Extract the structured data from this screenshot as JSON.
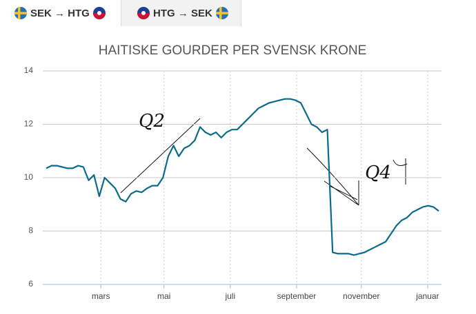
{
  "tabs": [
    "SEK → HTG",
    "HTG → SEK"
  ],
  "chart_data": {
    "type": "line",
    "title": "HAITISKE GOURDER PER SVENSK KRONE",
    "color": "#0b6a8c",
    "values": [
      10.35,
      10.45,
      10.45,
      10.4,
      10.35,
      10.35,
      10.45,
      10.4,
      9.9,
      10.1,
      9.3,
      10.0,
      9.8,
      9.6,
      9.2,
      9.1,
      9.4,
      9.5,
      9.45,
      9.6,
      9.7,
      9.7,
      10.0,
      10.8,
      11.2,
      10.8,
      11.1,
      11.2,
      11.4,
      11.9,
      11.7,
      11.6,
      11.7,
      11.5,
      11.7,
      11.8,
      11.8,
      12.0,
      12.2,
      12.4,
      12.6,
      12.7,
      12.8,
      12.85,
      12.9,
      12.95,
      12.95,
      12.9,
      12.8,
      12.4,
      12.0,
      11.9,
      11.7,
      11.8,
      7.2,
      7.15,
      7.15,
      7.15,
      7.1,
      7.15,
      7.2,
      7.3,
      7.4,
      7.5,
      7.6,
      7.9,
      8.2,
      8.4,
      8.5,
      8.7,
      8.8,
      8.9,
      8.95,
      8.9,
      8.75
    ],
    "xlim": [
      0,
      74
    ],
    "xticks": [
      {
        "value": 10.3,
        "label": "mars"
      },
      {
        "value": 22.2,
        "label": "mai"
      },
      {
        "value": 34.7,
        "label": "juli"
      },
      {
        "value": 47.2,
        "label": "september"
      },
      {
        "value": 59.4,
        "label": "november"
      },
      {
        "value": 71.9,
        "label": "januar"
      }
    ],
    "ylim": [
      6,
      14
    ],
    "yticks": [
      6,
      8,
      10,
      12,
      14
    ],
    "grid": true,
    "annotations": [
      "Q2",
      "Q4"
    ]
  }
}
